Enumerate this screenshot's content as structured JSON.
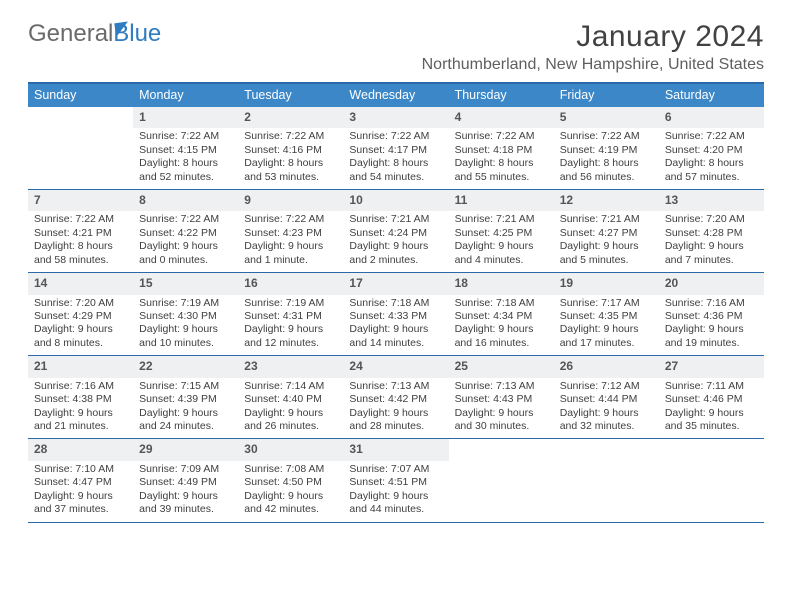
{
  "logo": {
    "text1": "General",
    "text2": "Blue"
  },
  "title": "January 2024",
  "location": "Northumberland, New Hampshire, United States",
  "colors": {
    "header_bg": "#3b87c8",
    "header_text": "#ffffff",
    "rule": "#2b6aa8",
    "daynum_bg": "#eef0f2",
    "body_text": "#3f3f3f",
    "logo_gray": "#6a6a6a",
    "logo_blue": "#2f7cc0"
  },
  "day_names": [
    "Sunday",
    "Monday",
    "Tuesday",
    "Wednesday",
    "Thursday",
    "Friday",
    "Saturday"
  ],
  "weeks": [
    [
      {
        "n": "",
        "sr": "",
        "ss": "",
        "dl": ""
      },
      {
        "n": "1",
        "sr": "Sunrise: 7:22 AM",
        "ss": "Sunset: 4:15 PM",
        "dl": "Daylight: 8 hours and 52 minutes."
      },
      {
        "n": "2",
        "sr": "Sunrise: 7:22 AM",
        "ss": "Sunset: 4:16 PM",
        "dl": "Daylight: 8 hours and 53 minutes."
      },
      {
        "n": "3",
        "sr": "Sunrise: 7:22 AM",
        "ss": "Sunset: 4:17 PM",
        "dl": "Daylight: 8 hours and 54 minutes."
      },
      {
        "n": "4",
        "sr": "Sunrise: 7:22 AM",
        "ss": "Sunset: 4:18 PM",
        "dl": "Daylight: 8 hours and 55 minutes."
      },
      {
        "n": "5",
        "sr": "Sunrise: 7:22 AM",
        "ss": "Sunset: 4:19 PM",
        "dl": "Daylight: 8 hours and 56 minutes."
      },
      {
        "n": "6",
        "sr": "Sunrise: 7:22 AM",
        "ss": "Sunset: 4:20 PM",
        "dl": "Daylight: 8 hours and 57 minutes."
      }
    ],
    [
      {
        "n": "7",
        "sr": "Sunrise: 7:22 AM",
        "ss": "Sunset: 4:21 PM",
        "dl": "Daylight: 8 hours and 58 minutes."
      },
      {
        "n": "8",
        "sr": "Sunrise: 7:22 AM",
        "ss": "Sunset: 4:22 PM",
        "dl": "Daylight: 9 hours and 0 minutes."
      },
      {
        "n": "9",
        "sr": "Sunrise: 7:22 AM",
        "ss": "Sunset: 4:23 PM",
        "dl": "Daylight: 9 hours and 1 minute."
      },
      {
        "n": "10",
        "sr": "Sunrise: 7:21 AM",
        "ss": "Sunset: 4:24 PM",
        "dl": "Daylight: 9 hours and 2 minutes."
      },
      {
        "n": "11",
        "sr": "Sunrise: 7:21 AM",
        "ss": "Sunset: 4:25 PM",
        "dl": "Daylight: 9 hours and 4 minutes."
      },
      {
        "n": "12",
        "sr": "Sunrise: 7:21 AM",
        "ss": "Sunset: 4:27 PM",
        "dl": "Daylight: 9 hours and 5 minutes."
      },
      {
        "n": "13",
        "sr": "Sunrise: 7:20 AM",
        "ss": "Sunset: 4:28 PM",
        "dl": "Daylight: 9 hours and 7 minutes."
      }
    ],
    [
      {
        "n": "14",
        "sr": "Sunrise: 7:20 AM",
        "ss": "Sunset: 4:29 PM",
        "dl": "Daylight: 9 hours and 8 minutes."
      },
      {
        "n": "15",
        "sr": "Sunrise: 7:19 AM",
        "ss": "Sunset: 4:30 PM",
        "dl": "Daylight: 9 hours and 10 minutes."
      },
      {
        "n": "16",
        "sr": "Sunrise: 7:19 AM",
        "ss": "Sunset: 4:31 PM",
        "dl": "Daylight: 9 hours and 12 minutes."
      },
      {
        "n": "17",
        "sr": "Sunrise: 7:18 AM",
        "ss": "Sunset: 4:33 PM",
        "dl": "Daylight: 9 hours and 14 minutes."
      },
      {
        "n": "18",
        "sr": "Sunrise: 7:18 AM",
        "ss": "Sunset: 4:34 PM",
        "dl": "Daylight: 9 hours and 16 minutes."
      },
      {
        "n": "19",
        "sr": "Sunrise: 7:17 AM",
        "ss": "Sunset: 4:35 PM",
        "dl": "Daylight: 9 hours and 17 minutes."
      },
      {
        "n": "20",
        "sr": "Sunrise: 7:16 AM",
        "ss": "Sunset: 4:36 PM",
        "dl": "Daylight: 9 hours and 19 minutes."
      }
    ],
    [
      {
        "n": "21",
        "sr": "Sunrise: 7:16 AM",
        "ss": "Sunset: 4:38 PM",
        "dl": "Daylight: 9 hours and 21 minutes."
      },
      {
        "n": "22",
        "sr": "Sunrise: 7:15 AM",
        "ss": "Sunset: 4:39 PM",
        "dl": "Daylight: 9 hours and 24 minutes."
      },
      {
        "n": "23",
        "sr": "Sunrise: 7:14 AM",
        "ss": "Sunset: 4:40 PM",
        "dl": "Daylight: 9 hours and 26 minutes."
      },
      {
        "n": "24",
        "sr": "Sunrise: 7:13 AM",
        "ss": "Sunset: 4:42 PM",
        "dl": "Daylight: 9 hours and 28 minutes."
      },
      {
        "n": "25",
        "sr": "Sunrise: 7:13 AM",
        "ss": "Sunset: 4:43 PM",
        "dl": "Daylight: 9 hours and 30 minutes."
      },
      {
        "n": "26",
        "sr": "Sunrise: 7:12 AM",
        "ss": "Sunset: 4:44 PM",
        "dl": "Daylight: 9 hours and 32 minutes."
      },
      {
        "n": "27",
        "sr": "Sunrise: 7:11 AM",
        "ss": "Sunset: 4:46 PM",
        "dl": "Daylight: 9 hours and 35 minutes."
      }
    ],
    [
      {
        "n": "28",
        "sr": "Sunrise: 7:10 AM",
        "ss": "Sunset: 4:47 PM",
        "dl": "Daylight: 9 hours and 37 minutes."
      },
      {
        "n": "29",
        "sr": "Sunrise: 7:09 AM",
        "ss": "Sunset: 4:49 PM",
        "dl": "Daylight: 9 hours and 39 minutes."
      },
      {
        "n": "30",
        "sr": "Sunrise: 7:08 AM",
        "ss": "Sunset: 4:50 PM",
        "dl": "Daylight: 9 hours and 42 minutes."
      },
      {
        "n": "31",
        "sr": "Sunrise: 7:07 AM",
        "ss": "Sunset: 4:51 PM",
        "dl": "Daylight: 9 hours and 44 minutes."
      },
      {
        "n": "",
        "sr": "",
        "ss": "",
        "dl": ""
      },
      {
        "n": "",
        "sr": "",
        "ss": "",
        "dl": ""
      },
      {
        "n": "",
        "sr": "",
        "ss": "",
        "dl": ""
      }
    ]
  ]
}
